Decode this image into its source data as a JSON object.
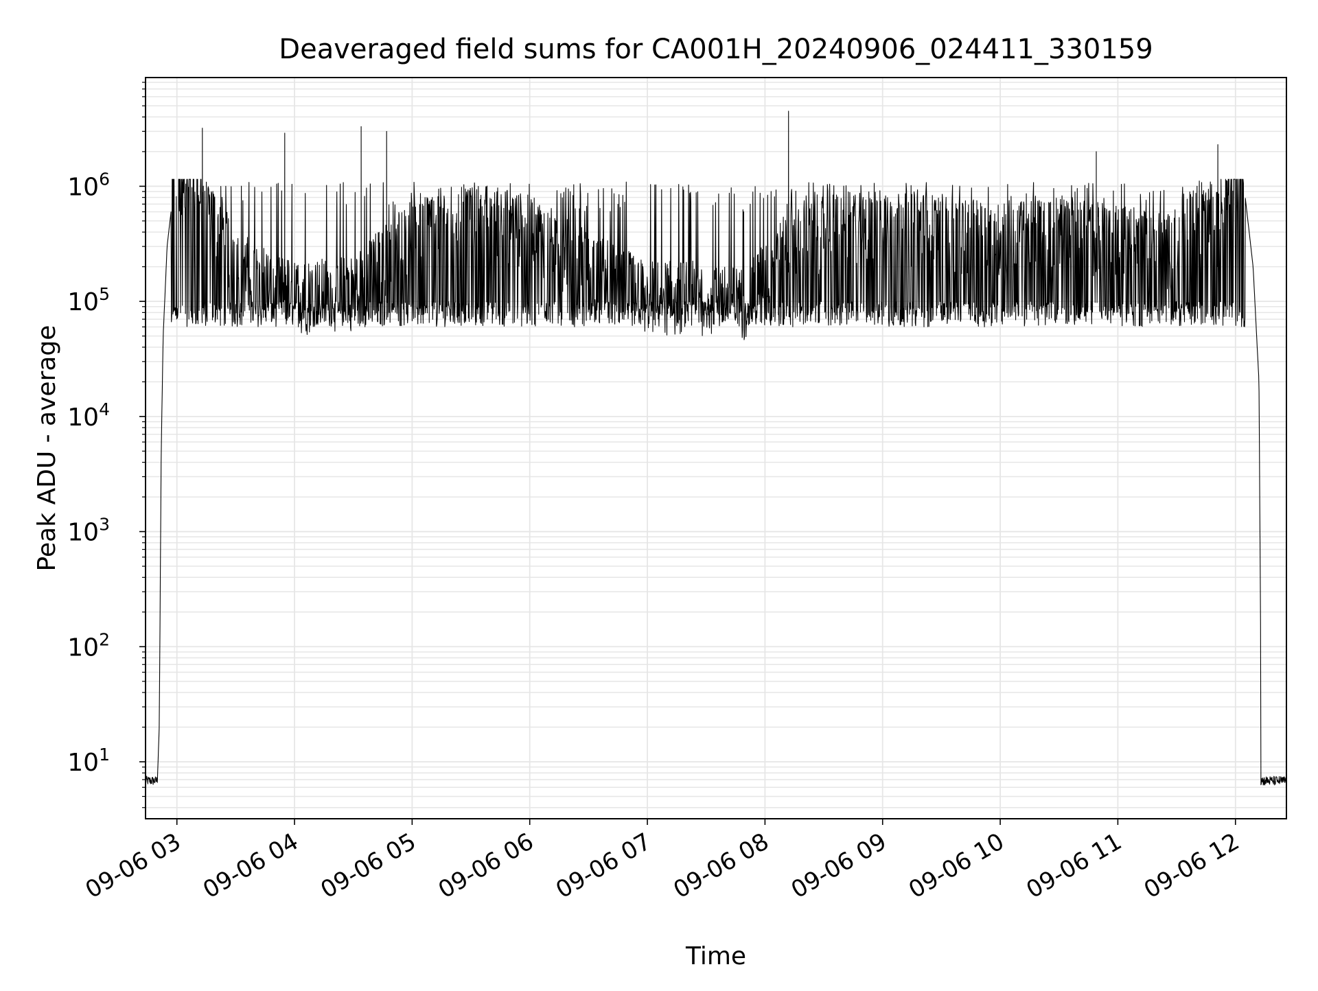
{
  "chart_data": {
    "type": "line",
    "title": "Deaveraged field sums for CA001H_20240906_024411_330159",
    "xlabel": "Time",
    "ylabel": "Peak ADU - average",
    "yscale": "log",
    "ylim": [
      3.2,
      8800000
    ],
    "xlim": [
      "2024-09-06 02:44",
      "2024-09-06 12:26"
    ],
    "grid": true,
    "legend": "none",
    "line_color": "#000000",
    "x_tick_labels": [
      "09-06 03",
      "09-06 04",
      "09-06 05",
      "09-06 06",
      "09-06 07",
      "09-06 08",
      "09-06 09",
      "09-06 10",
      "09-06 11",
      "09-06 12"
    ],
    "y_tick_labels": [
      {
        "base": "10",
        "exp": "1"
      },
      {
        "base": "10",
        "exp": "2"
      },
      {
        "base": "10",
        "exp": "3"
      },
      {
        "base": "10",
        "exp": "4"
      },
      {
        "base": "10",
        "exp": "5"
      },
      {
        "base": "10",
        "exp": "6"
      }
    ],
    "series": [
      {
        "x": [
          "09-06 02:44",
          "09-06 02:50",
          "09-06 02:51",
          "09-06 02:52",
          "09-06 02:53",
          "09-06 02:55",
          "09-06 02:57",
          "09-06 03:00",
          "09-06 03:05",
          "09-06 03:15",
          "09-06 03:30",
          "09-06 04:00",
          "09-06 04:30",
          "09-06 05:00",
          "09-06 05:30",
          "09-06 06:00",
          "09-06 06:30",
          "09-06 07:00",
          "09-06 07:30",
          "09-06 07:50",
          "09-06 08:10",
          "09-06 08:30",
          "09-06 09:00",
          "09-06 09:30",
          "09-06 10:00",
          "09-06 10:30",
          "09-06 11:00",
          "09-06 11:30",
          "09-06 11:45",
          "09-06 12:00",
          "09-06 12:05",
          "09-06 12:09",
          "09-06 12:12",
          "09-06 12:13",
          "09-06 12:14",
          "09-06 12:26"
        ],
        "y": [
          6.5,
          6.5,
          20,
          5000,
          50000,
          300000,
          600000,
          1000000,
          800000,
          500000,
          150000,
          80000,
          90000,
          300000,
          400000,
          300000,
          150000,
          80000,
          80000,
          70000,
          200000,
          300000,
          350000,
          300000,
          250000,
          300000,
          250000,
          200000,
          500000,
          1000000,
          800000,
          200000,
          20000,
          50,
          6.5,
          6.5
        ]
      }
    ],
    "notable_peaks": [
      {
        "x": "09-06 03:13",
        "y": 3200000
      },
      {
        "x": "09-06 04:34",
        "y": 3300000
      },
      {
        "x": "09-06 04:47",
        "y": 3000000
      },
      {
        "x": "09-06 03:55",
        "y": 2900000
      },
      {
        "x": "09-06 08:12",
        "y": 4500000
      },
      {
        "x": "09-06 10:49",
        "y": 2000000
      },
      {
        "x": "09-06 11:51",
        "y": 2300000
      }
    ]
  }
}
